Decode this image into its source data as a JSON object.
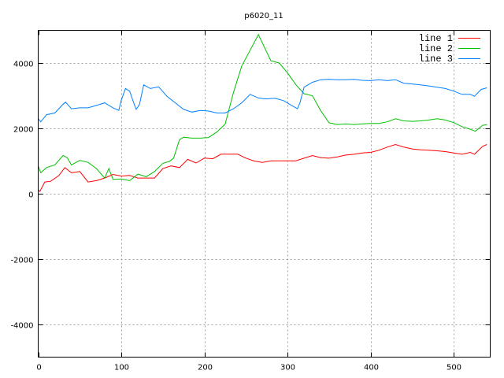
{
  "chart_data": {
    "type": "line",
    "title": "p6020_11",
    "xlabel": "",
    "ylabel": "",
    "xlim": [
      0,
      544
    ],
    "ylim": [
      -5000,
      5000
    ],
    "xticks": [
      0,
      100,
      200,
      300,
      400,
      500
    ],
    "yticks": [
      -4000,
      -2000,
      0,
      2000,
      4000
    ],
    "grid": true,
    "legend_position": "top-right",
    "series": [
      {
        "name": "line 1",
        "color": "#ff0000",
        "x": [
          0,
          2,
          8,
          15,
          25,
          32,
          40,
          50,
          60,
          70,
          80,
          90,
          100,
          110,
          120,
          130,
          140,
          150,
          160,
          170,
          180,
          190,
          200,
          210,
          220,
          230,
          240,
          250,
          260,
          270,
          280,
          290,
          300,
          310,
          320,
          330,
          340,
          350,
          360,
          370,
          380,
          390,
          400,
          410,
          420,
          430,
          440,
          450,
          460,
          470,
          480,
          490,
          500,
          510,
          520,
          525,
          535,
          540
        ],
        "y": [
          120,
          70,
          360,
          380,
          560,
          800,
          640,
          680,
          360,
          400,
          480,
          590,
          540,
          560,
          480,
          480,
          480,
          770,
          850,
          800,
          1050,
          940,
          1090,
          1070,
          1210,
          1210,
          1210,
          1090,
          1000,
          960,
          1007,
          1007,
          1007,
          1007,
          1087,
          1168,
          1104,
          1087,
          1128,
          1184,
          1208,
          1249,
          1265,
          1330,
          1426,
          1507,
          1426,
          1370,
          1345,
          1330,
          1313,
          1289,
          1249,
          1208,
          1265,
          1208,
          1450,
          1507
        ]
      },
      {
        "name": "line 2",
        "color": "#00c000",
        "x": [
          0,
          3,
          10,
          20,
          30,
          35,
          40,
          50,
          60,
          70,
          80,
          85,
          90,
          100,
          110,
          120,
          130,
          140,
          150,
          158,
          163,
          170,
          175,
          185,
          195,
          205,
          215,
          225,
          235,
          245,
          255,
          265,
          274,
          280,
          290,
          300,
          310,
          320,
          330,
          340,
          350,
          360,
          370,
          380,
          390,
          400,
          410,
          420,
          430,
          440,
          450,
          460,
          470,
          480,
          490,
          500,
          510,
          520,
          526,
          535,
          540
        ],
        "y": [
          850,
          640,
          800,
          880,
          1170,
          1100,
          880,
          1020,
          960,
          770,
          480,
          770,
          440,
          450,
          400,
          600,
          520,
          680,
          930,
          990,
          1090,
          1650,
          1730,
          1700,
          1700,
          1720,
          1890,
          2130,
          3100,
          3910,
          4390,
          4870,
          4390,
          4070,
          4000,
          3700,
          3340,
          3060,
          3000,
          2540,
          2170,
          2118,
          2134,
          2118,
          2134,
          2150,
          2150,
          2200,
          2295,
          2230,
          2215,
          2230,
          2255,
          2295,
          2255,
          2175,
          2053,
          1973,
          1910,
          2094,
          2110
        ]
      },
      {
        "name": "line 3",
        "color": "#0080ff",
        "x": [
          0,
          3,
          10,
          20,
          30,
          33,
          40,
          50,
          60,
          70,
          80,
          90,
          97,
          100,
          105,
          110,
          115,
          118,
          122,
          127,
          135,
          145,
          155,
          165,
          175,
          185,
          195,
          205,
          215,
          225,
          235,
          245,
          255,
          265,
          274,
          285,
          295,
          305,
          312,
          315,
          320,
          330,
          340,
          350,
          360,
          370,
          380,
          390,
          400,
          410,
          420,
          430,
          440,
          450,
          460,
          470,
          480,
          490,
          500,
          510,
          520,
          525,
          533,
          540
        ],
        "y": [
          2300,
          2200,
          2420,
          2470,
          2740,
          2800,
          2600,
          2630,
          2630,
          2700,
          2780,
          2630,
          2550,
          2860,
          3220,
          3140,
          2780,
          2580,
          2740,
          3330,
          3220,
          3270,
          2980,
          2780,
          2580,
          2500,
          2550,
          2530,
          2470,
          2470,
          2600,
          2780,
          3040,
          2930,
          2900,
          2920,
          2850,
          2700,
          2600,
          2780,
          3260,
          3410,
          3490,
          3500,
          3490,
          3490,
          3500,
          3470,
          3460,
          3490,
          3460,
          3490,
          3380,
          3360,
          3330,
          3300,
          3260,
          3220,
          3140,
          3040,
          3040,
          2980,
          3190,
          3240
        ]
      }
    ]
  }
}
